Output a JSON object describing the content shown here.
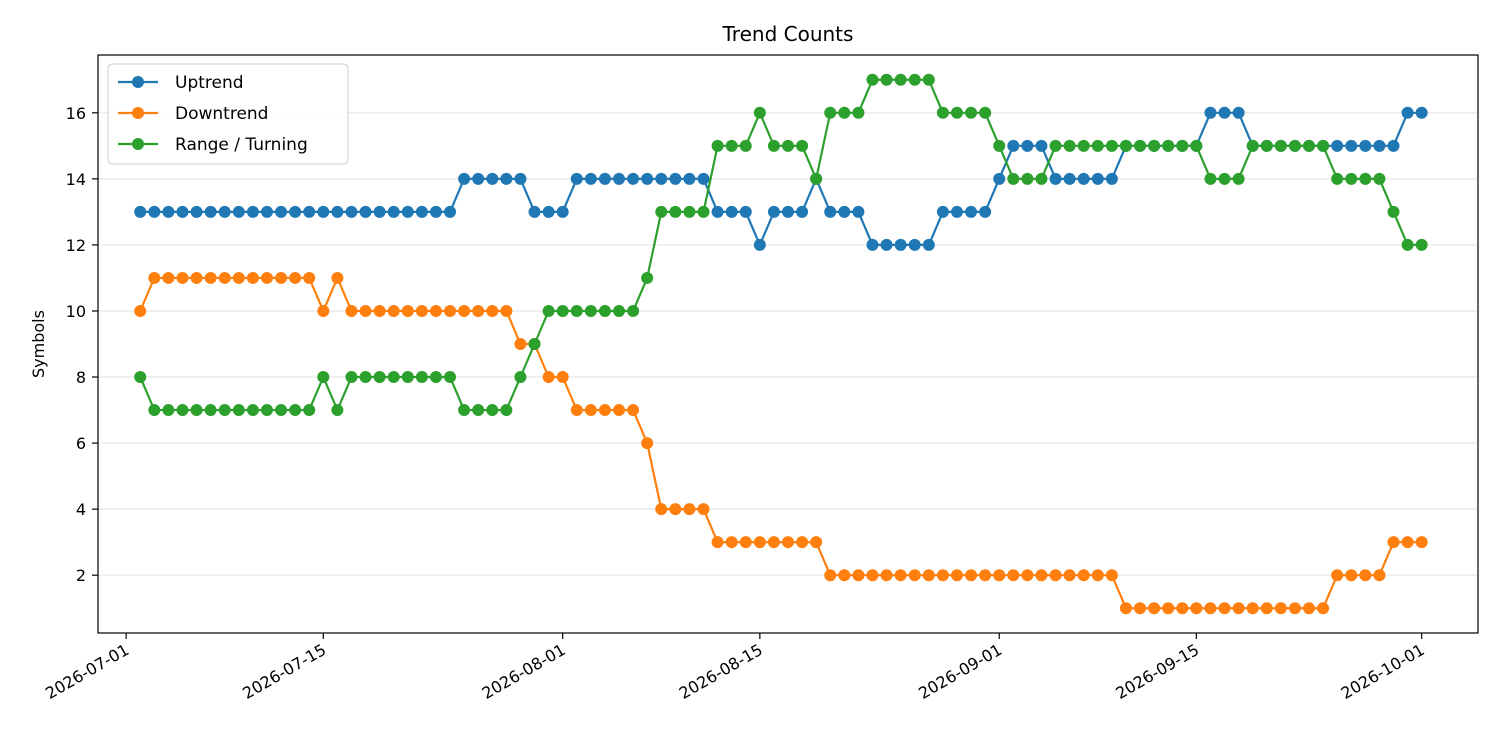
{
  "chart_data": {
    "type": "line",
    "title": "Trend Counts",
    "xlabel": "",
    "ylabel": "Symbols",
    "x_start": "2026-07-02",
    "x_end": "2026-09-30",
    "xlim": [
      "2026-06-29",
      "2026-10-05"
    ],
    "ylim": [
      0.25,
      17.75
    ],
    "x_ticks": [
      "2026-07-01",
      "2026-07-15",
      "2026-08-01",
      "2026-08-15",
      "2026-09-01",
      "2026-09-15",
      "2026-10-01"
    ],
    "y_ticks": [
      2,
      4,
      6,
      8,
      10,
      12,
      14,
      16
    ],
    "grid": "horizontal",
    "legend_position": "top-left",
    "series": [
      {
        "name": "Uptrend",
        "color": "#1f77b4",
        "values": [
          13,
          13,
          13,
          13,
          13,
          13,
          13,
          13,
          13,
          13,
          13,
          13,
          13,
          13,
          13,
          13,
          13,
          13,
          13,
          13,
          13,
          13,
          13,
          14,
          14,
          14,
          14,
          14,
          13,
          13,
          13,
          14,
          14,
          14,
          14,
          14,
          14,
          14,
          14,
          14,
          14,
          13,
          13,
          13,
          12,
          13,
          13,
          13,
          14,
          13,
          13,
          13,
          12,
          12,
          12,
          12,
          12,
          13,
          13,
          13,
          13,
          14,
          15,
          15,
          15,
          14,
          14,
          14,
          14,
          14,
          15,
          15,
          15,
          15,
          15,
          15,
          16,
          16,
          16,
          15,
          15,
          15,
          15,
          15,
          15,
          15,
          15,
          15,
          15,
          15,
          16,
          16
        ]
      },
      {
        "name": "Downtrend",
        "color": "#ff7f0e",
        "values": [
          10,
          11,
          11,
          11,
          11,
          11,
          11,
          11,
          11,
          11,
          11,
          11,
          11,
          10,
          11,
          10,
          10,
          10,
          10,
          10,
          10,
          10,
          10,
          10,
          10,
          10,
          10,
          9,
          9,
          8,
          8,
          7,
          7,
          7,
          7,
          7,
          6,
          4,
          4,
          4,
          4,
          3,
          3,
          3,
          3,
          3,
          3,
          3,
          3,
          2,
          2,
          2,
          2,
          2,
          2,
          2,
          2,
          2,
          2,
          2,
          2,
          2,
          2,
          2,
          2,
          2,
          2,
          2,
          2,
          2,
          1,
          1,
          1,
          1,
          1,
          1,
          1,
          1,
          1,
          1,
          1,
          1,
          1,
          1,
          1,
          2,
          2,
          2,
          2,
          3,
          3,
          3
        ]
      },
      {
        "name": "Range / Turning",
        "color": "#2ca02c",
        "values": [
          8,
          7,
          7,
          7,
          7,
          7,
          7,
          7,
          7,
          7,
          7,
          7,
          7,
          8,
          7,
          8,
          8,
          8,
          8,
          8,
          8,
          8,
          8,
          7,
          7,
          7,
          7,
          8,
          9,
          10,
          10,
          10,
          10,
          10,
          10,
          10,
          11,
          13,
          13,
          13,
          13,
          15,
          15,
          15,
          16,
          15,
          15,
          15,
          14,
          16,
          16,
          16,
          17,
          17,
          17,
          17,
          17,
          16,
          16,
          16,
          16,
          15,
          14,
          14,
          14,
          15,
          15,
          15,
          15,
          15,
          15,
          15,
          15,
          15,
          15,
          15,
          14,
          14,
          14,
          15,
          15,
          15,
          15,
          15,
          15,
          14,
          14,
          14,
          14,
          13,
          12,
          12
        ]
      }
    ]
  }
}
